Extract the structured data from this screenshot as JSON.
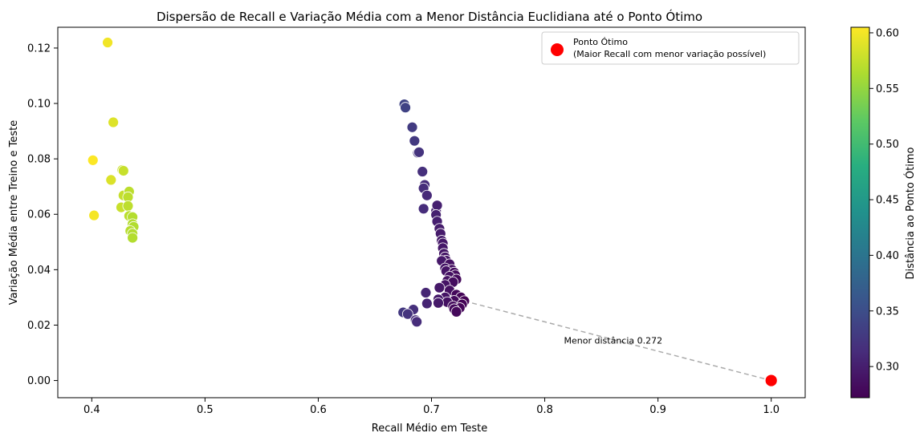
{
  "chart_data": {
    "type": "scatter",
    "title": "Dispersão de Recall e Variação Média com a Menor Distância Euclidiana até o Ponto Ótimo",
    "xlabel": "Recall Médio em Teste",
    "ylabel": "Variação Média entre Treino e Teste",
    "xlim": [
      0.37,
      1.03
    ],
    "ylim": [
      -0.0062,
      0.1275
    ],
    "x_ticks": [
      0.4,
      0.5,
      0.6,
      0.7,
      0.8,
      0.9,
      1.0
    ],
    "x_tick_labels": [
      "0.4",
      "0.5",
      "0.6",
      "0.7",
      "0.8",
      "0.9",
      "1.0"
    ],
    "y_ticks": [
      0.0,
      0.02,
      0.04,
      0.06,
      0.08,
      0.1,
      0.12
    ],
    "y_tick_labels": [
      "0.00",
      "0.02",
      "0.04",
      "0.06",
      "0.08",
      "0.10",
      "0.12"
    ],
    "grid": false,
    "legend": {
      "placement": "top-right",
      "entries": [
        {
          "label_line1": "Ponto Ótimo",
          "label_line2": "(Maior Recall com menor variação possível)",
          "color": "#ff0000"
        }
      ]
    },
    "colorbar": {
      "label": "Distância ao Ponto Ótimo",
      "range": [
        0.272,
        0.605
      ],
      "ticks": [
        0.3,
        0.35,
        0.4,
        0.45,
        0.5,
        0.55,
        0.6
      ],
      "tick_labels": [
        "0.30",
        "0.35",
        "0.40",
        "0.45",
        "0.50",
        "0.55",
        "0.60"
      ],
      "colormap": "viridis"
    },
    "optimal_point": {
      "x": 1.0,
      "y": 0.0,
      "color": "#ff0000"
    },
    "closest_point": {
      "x": 0.729,
      "y": 0.0287
    },
    "annotation": {
      "text": "Menor distância 0.272",
      "x": 0.817,
      "y": 0.0145
    },
    "points": [
      {
        "x": 0.414,
        "y": 0.122
      },
      {
        "x": 0.419,
        "y": 0.0932
      },
      {
        "x": 0.401,
        "y": 0.0795
      },
      {
        "x": 0.402,
        "y": 0.0596
      },
      {
        "x": 0.417,
        "y": 0.0724
      },
      {
        "x": 0.427,
        "y": 0.076
      },
      {
        "x": 0.428,
        "y": 0.0757
      },
      {
        "x": 0.428,
        "y": 0.0668
      },
      {
        "x": 0.433,
        "y": 0.0682
      },
      {
        "x": 0.426,
        "y": 0.0625
      },
      {
        "x": 0.432,
        "y": 0.0662
      },
      {
        "x": 0.432,
        "y": 0.063
      },
      {
        "x": 0.433,
        "y": 0.0594
      },
      {
        "x": 0.436,
        "y": 0.059
      },
      {
        "x": 0.436,
        "y": 0.0565
      },
      {
        "x": 0.437,
        "y": 0.0555
      },
      {
        "x": 0.434,
        "y": 0.054
      },
      {
        "x": 0.436,
        "y": 0.053
      },
      {
        "x": 0.436,
        "y": 0.0515
      },
      {
        "x": 0.676,
        "y": 0.0997
      },
      {
        "x": 0.677,
        "y": 0.0985
      },
      {
        "x": 0.683,
        "y": 0.0914
      },
      {
        "x": 0.685,
        "y": 0.0865
      },
      {
        "x": 0.688,
        "y": 0.0822
      },
      {
        "x": 0.689,
        "y": 0.0824
      },
      {
        "x": 0.692,
        "y": 0.0754
      },
      {
        "x": 0.694,
        "y": 0.0706
      },
      {
        "x": 0.693,
        "y": 0.0694
      },
      {
        "x": 0.696,
        "y": 0.0668
      },
      {
        "x": 0.693,
        "y": 0.062
      },
      {
        "x": 0.704,
        "y": 0.0612
      },
      {
        "x": 0.705,
        "y": 0.0632
      },
      {
        "x": 0.704,
        "y": 0.0598
      },
      {
        "x": 0.705,
        "y": 0.0574
      },
      {
        "x": 0.707,
        "y": 0.0548
      },
      {
        "x": 0.708,
        "y": 0.053
      },
      {
        "x": 0.709,
        "y": 0.0505
      },
      {
        "x": 0.71,
        "y": 0.0495
      },
      {
        "x": 0.71,
        "y": 0.0478
      },
      {
        "x": 0.711,
        "y": 0.0458
      },
      {
        "x": 0.712,
        "y": 0.0445
      },
      {
        "x": 0.713,
        "y": 0.0433
      },
      {
        "x": 0.709,
        "y": 0.0432
      },
      {
        "x": 0.716,
        "y": 0.042
      },
      {
        "x": 0.712,
        "y": 0.0405
      },
      {
        "x": 0.718,
        "y": 0.04
      },
      {
        "x": 0.713,
        "y": 0.0395
      },
      {
        "x": 0.72,
        "y": 0.039
      },
      {
        "x": 0.721,
        "y": 0.038
      },
      {
        "x": 0.716,
        "y": 0.0375
      },
      {
        "x": 0.722,
        "y": 0.0365
      },
      {
        "x": 0.714,
        "y": 0.036
      },
      {
        "x": 0.719,
        "y": 0.0355
      },
      {
        "x": 0.712,
        "y": 0.0345
      },
      {
        "x": 0.707,
        "y": 0.0335
      },
      {
        "x": 0.695,
        "y": 0.0317
      },
      {
        "x": 0.716,
        "y": 0.0325
      },
      {
        "x": 0.722,
        "y": 0.031
      },
      {
        "x": 0.726,
        "y": 0.03
      },
      {
        "x": 0.712,
        "y": 0.03
      },
      {
        "x": 0.706,
        "y": 0.0293
      },
      {
        "x": 0.72,
        "y": 0.0288
      },
      {
        "x": 0.729,
        "y": 0.0287
      },
      {
        "x": 0.714,
        "y": 0.0283
      },
      {
        "x": 0.696,
        "y": 0.0278
      },
      {
        "x": 0.706,
        "y": 0.028
      },
      {
        "x": 0.727,
        "y": 0.0275
      },
      {
        "x": 0.719,
        "y": 0.0268
      },
      {
        "x": 0.725,
        "y": 0.0262
      },
      {
        "x": 0.72,
        "y": 0.0258
      },
      {
        "x": 0.722,
        "y": 0.0248
      },
      {
        "x": 0.684,
        "y": 0.0256
      },
      {
        "x": 0.675,
        "y": 0.0246
      },
      {
        "x": 0.679,
        "y": 0.024
      },
      {
        "x": 0.686,
        "y": 0.0218
      },
      {
        "x": 0.687,
        "y": 0.0212
      }
    ]
  }
}
